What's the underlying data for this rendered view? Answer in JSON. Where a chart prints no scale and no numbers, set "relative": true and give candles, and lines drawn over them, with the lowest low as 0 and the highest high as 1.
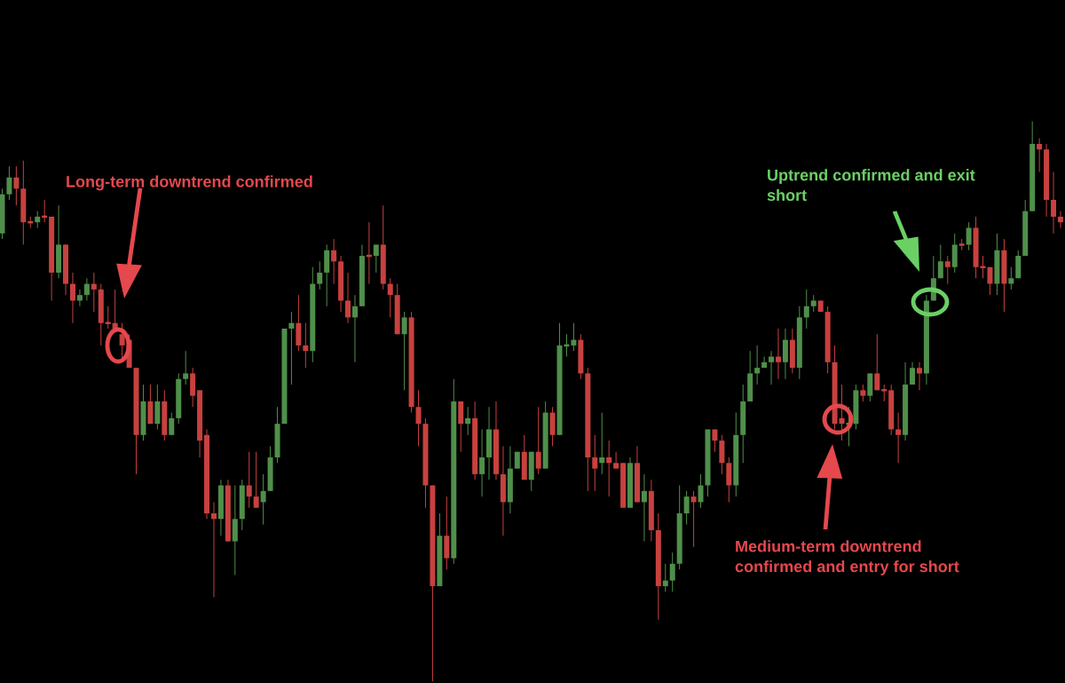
{
  "chart_data": {
    "type": "candlestick",
    "relative": true,
    "categories": [
      null,
      null,
      null,
      null,
      null,
      null,
      null,
      null,
      null,
      null,
      null,
      null,
      null,
      null,
      null,
      null,
      null,
      null,
      null,
      null,
      null,
      null,
      null,
      null,
      null,
      null,
      null,
      null,
      null,
      null,
      null,
      null,
      null,
      null,
      null,
      null,
      null,
      null,
      null,
      null,
      null,
      null,
      null,
      null,
      null,
      null,
      null,
      null,
      null,
      null,
      null,
      null,
      null,
      null,
      null,
      null,
      null,
      null,
      null,
      null,
      null,
      null,
      null,
      null,
      null,
      null,
      null,
      null,
      null,
      null,
      null,
      null,
      null,
      null,
      null,
      null,
      null,
      null,
      null,
      null,
      null,
      null,
      null,
      null,
      null,
      null,
      null,
      null,
      null,
      null,
      null,
      null,
      null,
      null,
      null,
      null,
      null,
      null,
      null,
      null,
      null,
      null,
      null,
      null,
      null,
      null,
      null,
      null,
      null,
      null,
      null,
      null,
      null,
      null,
      null,
      null,
      null,
      null,
      null,
      null,
      null,
      null,
      null,
      null,
      null,
      null,
      null,
      null,
      null,
      null,
      null,
      null,
      null,
      null,
      null,
      null,
      null,
      null,
      null,
      null,
      null,
      null,
      null,
      null,
      null,
      null,
      null,
      null,
      null,
      null,
      null
    ],
    "ohlc": [
      [
        0.8,
        0.88,
        0.79,
        0.87
      ],
      [
        0.87,
        0.92,
        0.86,
        0.9
      ],
      [
        0.9,
        0.92,
        0.85,
        0.88
      ],
      [
        0.88,
        0.93,
        0.78,
        0.82
      ],
      [
        0.82,
        0.83,
        0.81,
        0.82
      ],
      [
        0.82,
        0.84,
        0.81,
        0.83
      ],
      [
        0.83,
        0.86,
        0.82,
        0.83
      ],
      [
        0.83,
        0.83,
        0.68,
        0.73
      ],
      [
        0.73,
        0.85,
        0.72,
        0.78
      ],
      [
        0.78,
        0.78,
        0.69,
        0.71
      ],
      [
        0.71,
        0.73,
        0.64,
        0.68
      ],
      [
        0.68,
        0.7,
        0.67,
        0.69
      ],
      [
        0.69,
        0.72,
        0.68,
        0.71
      ],
      [
        0.71,
        0.73,
        0.66,
        0.7
      ],
      [
        0.7,
        0.71,
        0.6,
        0.64
      ],
      [
        0.64,
        0.67,
        0.63,
        0.64
      ],
      [
        0.64,
        0.7,
        0.63,
        0.63
      ],
      [
        0.62,
        0.64,
        0.57,
        0.6
      ],
      [
        0.61,
        0.62,
        0.56,
        0.56
      ],
      [
        0.56,
        0.56,
        0.37,
        0.44
      ],
      [
        0.44,
        0.53,
        0.43,
        0.5
      ],
      [
        0.5,
        0.53,
        0.46,
        0.46
      ],
      [
        0.46,
        0.53,
        0.45,
        0.5
      ],
      [
        0.5,
        0.52,
        0.43,
        0.44
      ],
      [
        0.44,
        0.48,
        0.44,
        0.47
      ],
      [
        0.47,
        0.55,
        0.46,
        0.54
      ],
      [
        0.54,
        0.59,
        0.53,
        0.55
      ],
      [
        0.55,
        0.56,
        0.49,
        0.51
      ],
      [
        0.52,
        0.52,
        0.4,
        0.43
      ],
      [
        0.44,
        0.45,
        0.29,
        0.3
      ],
      [
        0.3,
        0.32,
        0.15,
        0.29
      ],
      [
        0.29,
        0.36,
        0.26,
        0.35
      ],
      [
        0.35,
        0.36,
        0.25,
        0.25
      ],
      [
        0.25,
        0.35,
        0.19,
        0.29
      ],
      [
        0.29,
        0.36,
        0.27,
        0.35
      ],
      [
        0.35,
        0.41,
        0.31,
        0.33
      ],
      [
        0.33,
        0.41,
        0.31,
        0.31
      ],
      [
        0.32,
        0.37,
        0.28,
        0.34
      ],
      [
        0.34,
        0.42,
        0.34,
        0.4
      ],
      [
        0.4,
        0.49,
        0.39,
        0.46
      ],
      [
        0.46,
        0.63,
        0.46,
        0.63
      ],
      [
        0.63,
        0.66,
        0.53,
        0.64
      ],
      [
        0.64,
        0.69,
        0.59,
        0.6
      ],
      [
        0.6,
        0.64,
        0.56,
        0.59
      ],
      [
        0.59,
        0.74,
        0.57,
        0.71
      ],
      [
        0.71,
        0.75,
        0.7,
        0.73
      ],
      [
        0.73,
        0.78,
        0.67,
        0.77
      ],
      [
        0.77,
        0.79,
        0.71,
        0.75
      ],
      [
        0.75,
        0.76,
        0.66,
        0.68
      ],
      [
        0.68,
        0.73,
        0.64,
        0.65
      ],
      [
        0.65,
        0.69,
        0.57,
        0.67
      ],
      [
        0.67,
        0.78,
        0.67,
        0.76
      ],
      [
        0.76,
        0.82,
        0.71,
        0.76
      ],
      [
        0.76,
        0.78,
        0.73,
        0.78
      ],
      [
        0.78,
        0.85,
        0.7,
        0.71
      ],
      [
        0.71,
        0.72,
        0.65,
        0.69
      ],
      [
        0.69,
        0.71,
        0.62,
        0.62
      ],
      [
        0.62,
        0.66,
        0.52,
        0.65
      ],
      [
        0.65,
        0.66,
        0.48,
        0.49
      ],
      [
        0.49,
        0.52,
        0.42,
        0.46
      ],
      [
        0.46,
        0.47,
        0.31,
        0.35
      ],
      [
        0.35,
        0.35,
        0,
        0.17
      ],
      [
        0.17,
        0.3,
        0.17,
        0.26
      ],
      [
        0.26,
        0.33,
        0.2,
        0.22
      ],
      [
        0.22,
        0.54,
        0.21,
        0.5
      ],
      [
        0.5,
        0.5,
        0.41,
        0.46
      ],
      [
        0.46,
        0.49,
        0.44,
        0.47
      ],
      [
        0.47,
        0.5,
        0.36,
        0.37
      ],
      [
        0.37,
        0.45,
        0.33,
        0.4
      ],
      [
        0.4,
        0.49,
        0.36,
        0.45
      ],
      [
        0.45,
        0.5,
        0.36,
        0.37
      ],
      [
        0.37,
        0.42,
        0.26,
        0.32
      ],
      [
        0.32,
        0.42,
        0.3,
        0.38
      ],
      [
        0.38,
        0.41,
        0.38,
        0.41
      ],
      [
        0.41,
        0.44,
        0.36,
        0.36
      ],
      [
        0.36,
        0.41,
        0.34,
        0.41
      ],
      [
        0.41,
        0.49,
        0.37,
        0.38
      ],
      [
        0.38,
        0.5,
        0.38,
        0.48
      ],
      [
        0.48,
        0.49,
        0.42,
        0.44
      ],
      [
        0.44,
        0.64,
        0.44,
        0.6
      ],
      [
        0.6,
        0.62,
        0.58,
        0.6
      ],
      [
        0.6,
        0.64,
        0.59,
        0.61
      ],
      [
        0.61,
        0.62,
        0.54,
        0.55
      ],
      [
        0.55,
        0.56,
        0.34,
        0.4
      ],
      [
        0.4,
        0.44,
        0.34,
        0.38
      ],
      [
        0.39,
        0.48,
        0.37,
        0.4
      ],
      [
        0.4,
        0.43,
        0.33,
        0.39
      ],
      [
        0.39,
        0.41,
        0.38,
        0.38
      ],
      [
        0.39,
        0.39,
        0.31,
        0.31
      ],
      [
        0.31,
        0.4,
        0.31,
        0.39
      ],
      [
        0.39,
        0.42,
        0.32,
        0.32
      ],
      [
        0.32,
        0.37,
        0.25,
        0.34
      ],
      [
        0.34,
        0.36,
        0.25,
        0.27
      ],
      [
        0.27,
        0.3,
        0.11,
        0.17
      ],
      [
        0.17,
        0.21,
        0.16,
        0.18
      ],
      [
        0.18,
        0.23,
        0.16,
        0.21
      ],
      [
        0.21,
        0.35,
        0.2,
        0.3
      ],
      [
        0.3,
        0.34,
        0.28,
        0.33
      ],
      [
        0.33,
        0.34,
        0.24,
        0.32
      ],
      [
        0.32,
        0.37,
        0.31,
        0.35
      ],
      [
        0.35,
        0.45,
        0.33,
        0.45
      ],
      [
        0.45,
        0.45,
        0.41,
        0.43
      ],
      [
        0.43,
        0.44,
        0.37,
        0.39
      ],
      [
        0.39,
        0.4,
        0.32,
        0.35
      ],
      [
        0.35,
        0.48,
        0.33,
        0.44
      ],
      [
        0.44,
        0.53,
        0.39,
        0.5
      ],
      [
        0.5,
        0.59,
        0.5,
        0.55
      ],
      [
        0.55,
        0.6,
        0.53,
        0.56
      ],
      [
        0.56,
        0.58,
        0.56,
        0.57
      ],
      [
        0.57,
        0.59,
        0.53,
        0.58
      ],
      [
        0.58,
        0.63,
        0.54,
        0.57
      ],
      [
        0.57,
        0.63,
        0.54,
        0.61
      ],
      [
        0.61,
        0.63,
        0.55,
        0.56
      ],
      [
        0.56,
        0.67,
        0.54,
        0.65
      ],
      [
        0.65,
        0.7,
        0.63,
        0.67
      ],
      [
        0.67,
        0.69,
        0.66,
        0.68
      ],
      [
        0.68,
        0.68,
        0.66,
        0.66
      ],
      [
        0.66,
        0.67,
        0.55,
        0.57
      ],
      [
        0.57,
        0.6,
        0.45,
        0.46
      ],
      [
        0.47,
        0.53,
        0.43,
        0.46
      ],
      [
        0.46,
        0.49,
        0.42,
        0.46
      ],
      [
        0.46,
        0.53,
        0.45,
        0.52
      ],
      [
        0.52,
        0.53,
        0.5,
        0.51
      ],
      [
        0.51,
        0.55,
        0.5,
        0.55
      ],
      [
        0.55,
        0.62,
        0.52,
        0.52
      ],
      [
        0.52,
        0.53,
        0.5,
        0.52
      ],
      [
        0.52,
        0.53,
        0.44,
        0.45
      ],
      [
        0.45,
        0.48,
        0.39,
        0.44
      ],
      [
        0.44,
        0.57,
        0.43,
        0.53
      ],
      [
        0.53,
        0.57,
        0.53,
        0.56
      ],
      [
        0.56,
        0.57,
        0.52,
        0.55
      ],
      [
        0.55,
        0.69,
        0.53,
        0.68
      ],
      [
        0.68,
        0.76,
        0.68,
        0.72
      ],
      [
        0.72,
        0.78,
        0.72,
        0.75
      ],
      [
        0.75,
        0.76,
        0.71,
        0.74
      ],
      [
        0.74,
        0.8,
        0.73,
        0.78
      ],
      [
        0.78,
        0.79,
        0.77,
        0.78
      ],
      [
        0.78,
        0.82,
        0.77,
        0.81
      ],
      [
        0.81,
        0.83,
        0.72,
        0.74
      ],
      [
        0.74,
        0.76,
        0.72,
        0.74
      ],
      [
        0.74,
        0.74,
        0.69,
        0.71
      ],
      [
        0.71,
        0.8,
        0.69,
        0.77
      ],
      [
        0.77,
        0.79,
        0.66,
        0.71
      ],
      [
        0.71,
        0.74,
        0.7,
        0.72
      ],
      [
        0.72,
        0.77,
        0.72,
        0.76
      ],
      [
        0.76,
        0.86,
        0.76,
        0.84
      ],
      [
        0.84,
        1.0,
        0.84,
        0.96
      ],
      [
        0.96,
        0.97,
        0.91,
        0.95
      ],
      [
        0.95,
        0.96,
        0.83,
        0.86
      ],
      [
        0.86,
        0.91,
        0.8,
        0.83
      ],
      [
        0.83,
        0.84,
        0.81,
        0.82
      ]
    ],
    "colors": [
      "#4f8f4b",
      "#4f8f4b",
      "#c7413f",
      "#c7413f",
      "#c7413f",
      "#4f8f4b",
      "#c7413f",
      "#c7413f",
      "#4f8f4b",
      "#c7413f",
      "#c7413f",
      "#4f8f4b",
      "#4f8f4b",
      "#c7413f",
      "#c7413f",
      "#c7413f",
      "#c7413f",
      "#c7413f",
      "#c7413f",
      "#c7413f",
      "#4f8f4b",
      "#c7413f",
      "#4f8f4b",
      "#c7413f",
      "#4f8f4b",
      "#4f8f4b",
      "#4f8f4b",
      "#c7413f",
      "#c7413f",
      "#c7413f",
      "#c7413f",
      "#4f8f4b",
      "#c7413f",
      "#4f8f4b",
      "#4f8f4b",
      "#c7413f",
      "#c7413f",
      "#4f8f4b",
      "#4f8f4b",
      "#4f8f4b",
      "#4f8f4b",
      "#4f8f4b",
      "#c7413f",
      "#c7413f",
      "#4f8f4b",
      "#4f8f4b",
      "#4f8f4b",
      "#c7413f",
      "#c7413f",
      "#c7413f",
      "#4f8f4b",
      "#4f8f4b",
      "#c7413f",
      "#4f8f4b",
      "#c7413f",
      "#c7413f",
      "#c7413f",
      "#4f8f4b",
      "#c7413f",
      "#c7413f",
      "#c7413f",
      "#c7413f",
      "#4f8f4b",
      "#c7413f",
      "#4f8f4b",
      "#c7413f",
      "#4f8f4b",
      "#c7413f",
      "#4f8f4b",
      "#4f8f4b",
      "#c7413f",
      "#c7413f",
      "#4f8f4b",
      "#4f8f4b",
      "#c7413f",
      "#4f8f4b",
      "#c7413f",
      "#4f8f4b",
      "#c7413f",
      "#4f8f4b",
      "#4f8f4b",
      "#4f8f4b",
      "#c7413f",
      "#c7413f",
      "#c7413f",
      "#4f8f4b",
      "#c7413f",
      "#c7413f",
      "#c7413f",
      "#4f8f4b",
      "#c7413f",
      "#4f8f4b",
      "#c7413f",
      "#c7413f",
      "#4f8f4b",
      "#4f8f4b",
      "#4f8f4b",
      "#4f8f4b",
      "#c7413f",
      "#4f8f4b",
      "#4f8f4b",
      "#c7413f",
      "#c7413f",
      "#c7413f",
      "#4f8f4b",
      "#4f8f4b",
      "#4f8f4b",
      "#4f8f4b",
      "#4f8f4b",
      "#4f8f4b",
      "#c7413f",
      "#4f8f4b",
      "#c7413f",
      "#4f8f4b",
      "#4f8f4b",
      "#4f8f4b",
      "#c7413f",
      "#c7413f",
      "#c7413f",
      "#c7413f",
      "#4f8f4b",
      "#4f8f4b",
      "#c7413f",
      "#4f8f4b",
      "#c7413f",
      "#c7413f",
      "#c7413f",
      "#c7413f",
      "#4f8f4b",
      "#4f8f4b",
      "#c7413f",
      "#4f8f4b",
      "#4f8f4b",
      "#4f8f4b",
      "#c7413f",
      "#4f8f4b",
      "#c7413f",
      "#4f8f4b",
      "#c7413f",
      "#c7413f",
      "#c7413f",
      "#4f8f4b",
      "#c7413f",
      "#4f8f4b",
      "#4f8f4b",
      "#4f8f4b",
      "#4f8f4b",
      "#c7413f",
      "#c7413f",
      "#c7413f",
      "#c7413f"
    ],
    "annotations": [
      "Long-term downtrend confirmed",
      "Uptrend confirmed and exit\nshort",
      "Medium-term downtrend\nconfirmed and entry for short"
    ]
  }
}
